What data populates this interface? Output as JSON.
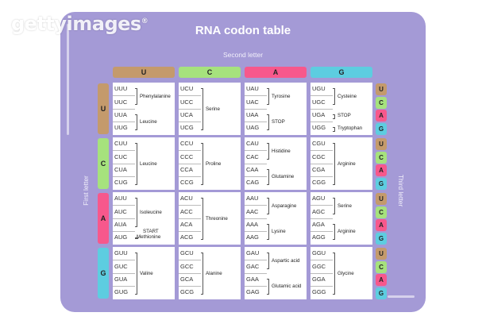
{
  "watermark": "gettyimages",
  "watermark_mark": "®",
  "title": "RNA codon table",
  "second_letter_label": "Second letter",
  "first_letter_label": "First letter",
  "third_letter_label": "Third letter",
  "colors": {
    "U": "#c49a6c",
    "C": "#a6e27d",
    "A": "#f7588c",
    "G": "#5dcde0",
    "background": "#a49ad6"
  },
  "columns": [
    "U",
    "C",
    "A",
    "G"
  ],
  "rows": [
    "U",
    "C",
    "A",
    "G"
  ],
  "third_letters": [
    "U",
    "C",
    "A",
    "G"
  ],
  "blocks": [
    [
      {
        "codons": [
          "UUU",
          "UUC",
          "UUA",
          "UUG"
        ],
        "amino": [
          "Phenylalanine",
          "Leucine"
        ]
      },
      {
        "codons": [
          "UCU",
          "UCC",
          "UCA",
          "UCG"
        ],
        "amino": [
          "Serine"
        ]
      },
      {
        "codons": [
          "UAU",
          "UAC",
          "UAA",
          "UAG"
        ],
        "amino": [
          "Tyrosine",
          "STOP"
        ]
      },
      {
        "codons": [
          "UGU",
          "UGC",
          "UGA",
          "UGG"
        ],
        "amino": [
          "Cysteine",
          "STOP",
          "Tryptophan"
        ]
      }
    ],
    [
      {
        "codons": [
          "CUU",
          "CUC",
          "CUA",
          "CUG"
        ],
        "amino": [
          "Leucine"
        ]
      },
      {
        "codons": [
          "CCU",
          "CCC",
          "CCA",
          "CCG"
        ],
        "amino": [
          "Proline"
        ]
      },
      {
        "codons": [
          "CAU",
          "CAC",
          "CAA",
          "CAG"
        ],
        "amino": [
          "Histidine",
          "Glutamine"
        ]
      },
      {
        "codons": [
          "CGU",
          "CGC",
          "CGA",
          "CGG"
        ],
        "amino": [
          "Arginine"
        ]
      }
    ],
    [
      {
        "codons": [
          "AUU",
          "AUC",
          "AUA",
          "AUG"
        ],
        "amino": [
          "Isoleucine",
          "START",
          "Methionine"
        ]
      },
      {
        "codons": [
          "ACU",
          "ACC",
          "ACA",
          "ACG"
        ],
        "amino": [
          "Threonine"
        ]
      },
      {
        "codons": [
          "AAU",
          "AAC",
          "AAA",
          "AAG"
        ],
        "amino": [
          "Asparagine",
          "Lysine"
        ]
      },
      {
        "codons": [
          "AGU",
          "AGC",
          "AGA",
          "AGG"
        ],
        "amino": [
          "Serine",
          "Arginine"
        ]
      }
    ],
    [
      {
        "codons": [
          "GUU",
          "GUC",
          "GUA",
          "GUG"
        ],
        "amino": [
          "Valine"
        ]
      },
      {
        "codons": [
          "GCU",
          "GCC",
          "GCA",
          "GCG"
        ],
        "amino": [
          "Alanine"
        ]
      },
      {
        "codons": [
          "GAU",
          "GAC",
          "GAA",
          "GAG"
        ],
        "amino": [
          "Aspartic acid",
          "Glutamic acid"
        ]
      },
      {
        "codons": [
          "GGU",
          "GGC",
          "GGA",
          "GGG"
        ],
        "amino": [
          "Glycine"
        ]
      }
    ]
  ]
}
